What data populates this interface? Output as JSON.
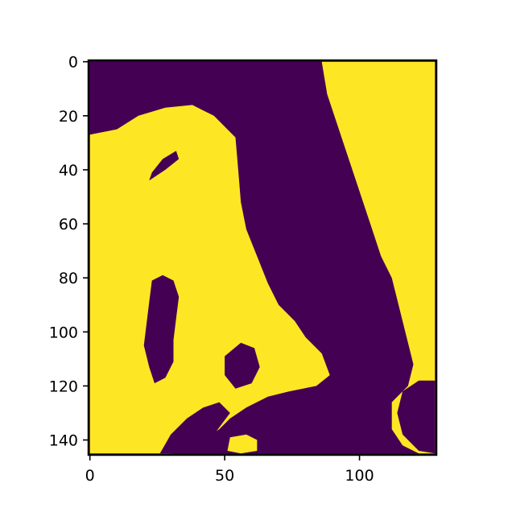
{
  "chart_data": {
    "type": "heatmap",
    "title": "",
    "xlabel": "",
    "ylabel": "",
    "colormap": "viridis",
    "binary_values": [
      0,
      1
    ],
    "colors": {
      "low": "#440154",
      "high": "#fde725",
      "axes": "#000000"
    },
    "grid": false,
    "shape": {
      "rows": 146,
      "cols": 129
    },
    "xlim": [
      -0.5,
      128.5
    ],
    "ylim": [
      145.5,
      -0.5
    ],
    "x_ticks": [
      {
        "value": 0,
        "label": "0"
      },
      {
        "value": 50,
        "label": "50"
      },
      {
        "value": 100,
        "label": "100"
      }
    ],
    "y_ticks": [
      {
        "value": 0,
        "label": "0"
      },
      {
        "value": 20,
        "label": "20"
      },
      {
        "value": 40,
        "label": "40"
      },
      {
        "value": 60,
        "label": "60"
      },
      {
        "value": 80,
        "label": "80"
      },
      {
        "value": 100,
        "label": "100"
      },
      {
        "value": 120,
        "label": "120"
      },
      {
        "value": 140,
        "label": "140"
      }
    ],
    "regions": [
      {
        "name": "left-landmass",
        "value": 1,
        "boundary": [
          [
            0,
            27
          ],
          [
            10,
            25
          ],
          [
            18,
            20
          ],
          [
            28,
            17
          ],
          [
            38,
            16
          ],
          [
            46,
            20
          ],
          [
            54,
            28
          ],
          [
            55,
            40
          ],
          [
            56,
            52
          ],
          [
            58,
            62
          ],
          [
            62,
            72
          ],
          [
            66,
            82
          ],
          [
            70,
            90
          ],
          [
            76,
            96
          ],
          [
            80,
            102
          ],
          [
            86,
            108
          ],
          [
            89,
            116
          ],
          [
            84,
            120
          ],
          [
            74,
            122
          ],
          [
            66,
            124
          ],
          [
            58,
            128
          ],
          [
            52,
            132
          ],
          [
            48,
            136
          ],
          [
            42,
            140
          ],
          [
            36,
            143
          ],
          [
            30,
            145
          ],
          [
            0,
            145
          ]
        ]
      },
      {
        "name": "right-landmass",
        "value": 1,
        "boundary": [
          [
            86,
            0
          ],
          [
            128,
            0
          ],
          [
            128,
            145
          ],
          [
            122,
            145
          ],
          [
            116,
            142
          ],
          [
            112,
            136
          ],
          [
            112,
            126
          ],
          [
            118,
            120
          ],
          [
            120,
            112
          ],
          [
            118,
            104
          ],
          [
            116,
            96
          ],
          [
            114,
            88
          ],
          [
            112,
            80
          ],
          [
            108,
            72
          ],
          [
            106,
            66
          ],
          [
            104,
            60
          ],
          [
            102,
            54
          ],
          [
            100,
            48
          ],
          [
            98,
            42
          ],
          [
            96,
            36
          ],
          [
            94,
            30
          ],
          [
            92,
            24
          ],
          [
            90,
            18
          ],
          [
            88,
            12
          ],
          [
            87,
            6
          ]
        ]
      },
      {
        "name": "inland-lake-west",
        "value": 0,
        "boundary": [
          [
            22,
            44
          ],
          [
            28,
            40
          ],
          [
            33,
            36
          ],
          [
            32,
            33
          ],
          [
            27,
            36
          ],
          [
            23,
            41
          ]
        ]
      },
      {
        "name": "inland-lake-center",
        "value": 0,
        "boundary": [
          [
            23,
            81
          ],
          [
            27,
            79
          ],
          [
            31,
            81
          ],
          [
            33,
            87
          ],
          [
            32,
            95
          ],
          [
            31,
            103
          ],
          [
            31,
            111
          ],
          [
            28,
            117
          ],
          [
            24,
            119
          ],
          [
            22,
            113
          ],
          [
            20,
            105
          ],
          [
            21,
            97
          ],
          [
            22,
            89
          ]
        ]
      },
      {
        "name": "inland-lake-south",
        "value": 0,
        "boundary": [
          [
            50,
            109
          ],
          [
            56,
            104
          ],
          [
            61,
            106
          ],
          [
            63,
            113
          ],
          [
            60,
            119
          ],
          [
            54,
            121
          ],
          [
            50,
            116
          ]
        ]
      },
      {
        "name": "coastal-water-south",
        "value": 0,
        "boundary": [
          [
            26,
            145
          ],
          [
            30,
            138
          ],
          [
            36,
            132
          ],
          [
            42,
            128
          ],
          [
            48,
            126
          ],
          [
            52,
            130
          ],
          [
            46,
            138
          ],
          [
            40,
            143
          ],
          [
            34,
            145
          ]
        ]
      },
      {
        "name": "right-bay",
        "value": 0,
        "boundary": [
          [
            128,
            118
          ],
          [
            122,
            118
          ],
          [
            116,
            122
          ],
          [
            114,
            130
          ],
          [
            116,
            138
          ],
          [
            122,
            144
          ],
          [
            128,
            145
          ]
        ]
      },
      {
        "name": "island-south",
        "value": 1,
        "boundary": [
          [
            52,
            139
          ],
          [
            58,
            138
          ],
          [
            62,
            140
          ],
          [
            62,
            144
          ],
          [
            56,
            145
          ],
          [
            51,
            144
          ]
        ]
      }
    ]
  }
}
